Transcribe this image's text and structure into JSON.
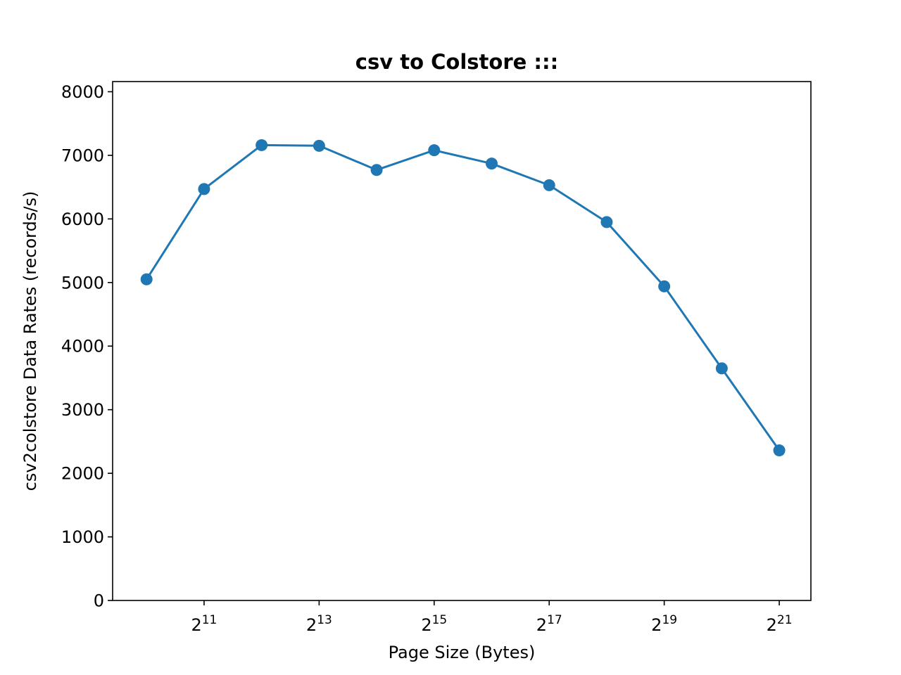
{
  "chart_data": {
    "type": "line",
    "title": "csv to Colstore :::",
    "xlabel": "Page Size (Bytes)",
    "ylabel": "csv2colstore Data Rates (records/s)",
    "x_scale": "log2",
    "x": [
      1024,
      2048,
      4096,
      8192,
      16384,
      32768,
      65536,
      131072,
      262144,
      524288,
      1048576,
      2097152
    ],
    "series": [
      {
        "values": [
          5050,
          6470,
          7160,
          7150,
          6770,
          7080,
          6870,
          6530,
          5950,
          4940,
          3650,
          2360
        ],
        "color": "#1f77b4",
        "marker": "circle"
      }
    ],
    "xlim_log2": [
      9.41,
      21.55
    ],
    "ylim": [
      0,
      8160
    ],
    "x_ticks": [
      {
        "base": "2",
        "exp": "11",
        "log2": 11
      },
      {
        "base": "2",
        "exp": "13",
        "log2": 13
      },
      {
        "base": "2",
        "exp": "15",
        "log2": 15
      },
      {
        "base": "2",
        "exp": "17",
        "log2": 17
      },
      {
        "base": "2",
        "exp": "19",
        "log2": 19
      },
      {
        "base": "2",
        "exp": "21",
        "log2": 21
      }
    ],
    "y_ticks": [
      0,
      1000,
      2000,
      3000,
      4000,
      5000,
      6000,
      7000,
      8000
    ],
    "grid": false,
    "legend": "none"
  }
}
